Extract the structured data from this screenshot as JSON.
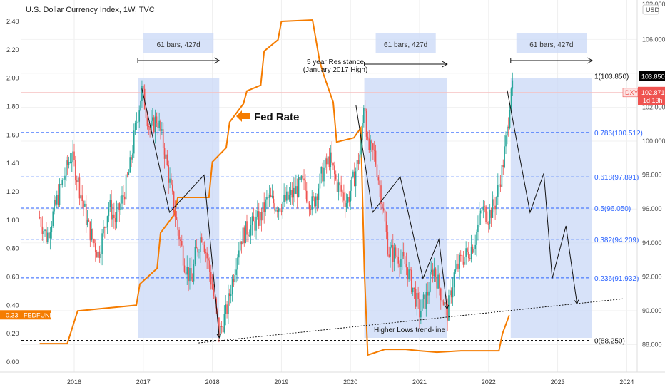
{
  "chart_data": {
    "type": "line",
    "title": "U.S. Dollar Currency Index, 1W, TVC",
    "x_ticks": [
      "2016",
      "2017",
      "2018",
      "2019",
      "2020",
      "2021",
      "2022",
      "2023",
      "2024"
    ],
    "left_axis": {
      "ticks": [
        "0.00",
        "0.20",
        "0.40",
        "0.60",
        "0.80",
        "1.00",
        "1.20",
        "1.40",
        "1.60",
        "1.80",
        "2.00",
        "2.20",
        "2.40"
      ],
      "range": [
        -0.05,
        2.55
      ]
    },
    "right_axis": {
      "unit": "USD",
      "ticks": [
        "88.000",
        "90.000",
        "92.000",
        "94.000",
        "96.000",
        "98.000",
        "100.000",
        "102.000",
        "104.000",
        "106.000"
      ],
      "top_label_partial": "10?.000",
      "range": [
        86.7,
        108.6
      ]
    },
    "fib_levels": [
      {
        "label": "1(103.850)",
        "value": 103.85
      },
      {
        "label": "0.786(100.512)",
        "value": 100.512
      },
      {
        "label": "0.618(97.891)",
        "value": 97.891
      },
      {
        "label": "0.5(96.050)",
        "value": 96.05
      },
      {
        "label": "0.382(94.209)",
        "value": 94.209
      },
      {
        "label": "0.236(91.932)",
        "value": 91.932
      },
      {
        "label": "0(88.250)",
        "value": 88.25
      }
    ],
    "boxes": [
      {
        "label": "61 bars, 427d",
        "start": 2016.92,
        "end": 2018.1
      },
      {
        "label": "61 bars, 427d",
        "start": 2020.2,
        "end": 2021.4
      },
      {
        "label": "61 bars, 427d",
        "start": 2022.32,
        "end": 2023.5
      }
    ],
    "resistance": {
      "value": 103.85,
      "label_line1": "5 year Resistance",
      "label_line2": "(January 2017 High)"
    },
    "trendline_label": "Higher Lows trend-line",
    "fed_label": "Fed Rate",
    "dxy_tag": {
      "name": "DXY",
      "price": "102.871",
      "countdown": "1d 13h"
    },
    "resistance_tag": "103.850",
    "fed_tag": {
      "value": "0.33",
      "name": "FEDFUNDS"
    },
    "fed_funds_series": {
      "name": "FEDFUNDS",
      "points": [
        [
          2015.5,
          0.13
        ],
        [
          2015.9,
          0.13
        ],
        [
          2016.05,
          0.36
        ],
        [
          2016.9,
          0.4
        ],
        [
          2016.95,
          0.55
        ],
        [
          2017.2,
          0.66
        ],
        [
          2017.25,
          0.91
        ],
        [
          2017.45,
          1.04
        ],
        [
          2017.5,
          1.16
        ],
        [
          2017.95,
          1.16
        ],
        [
          2018.0,
          1.41
        ],
        [
          2018.2,
          1.51
        ],
        [
          2018.25,
          1.69
        ],
        [
          2018.45,
          1.82
        ],
        [
          2018.5,
          1.91
        ],
        [
          2018.7,
          1.95
        ],
        [
          2018.75,
          2.19
        ],
        [
          2018.95,
          2.27
        ],
        [
          2019.0,
          2.4
        ],
        [
          2019.45,
          2.41
        ],
        [
          2019.55,
          2.13
        ],
        [
          2019.6,
          2.04
        ],
        [
          2019.75,
          1.83
        ],
        [
          2019.8,
          1.55
        ],
        [
          2020.05,
          1.58
        ],
        [
          2020.15,
          1.65
        ],
        [
          2020.2,
          0.65
        ],
        [
          2020.25,
          0.05
        ],
        [
          2020.5,
          0.09
        ],
        [
          2020.8,
          0.09
        ],
        [
          2021.0,
          0.08
        ],
        [
          2021.25,
          0.07
        ],
        [
          2021.6,
          0.08
        ],
        [
          2022.15,
          0.08
        ],
        [
          2022.2,
          0.2
        ],
        [
          2022.3,
          0.33
        ]
      ]
    },
    "dxy_series": {
      "name": "DXY",
      "points": [
        [
          2015.5,
          95.5
        ],
        [
          2015.6,
          94.3
        ],
        [
          2015.75,
          96.5
        ],
        [
          2015.95,
          99.2
        ],
        [
          2016.0,
          98.6
        ],
        [
          2016.2,
          95.0
        ],
        [
          2016.35,
          93.3
        ],
        [
          2016.4,
          94.2
        ],
        [
          2016.5,
          96.2
        ],
        [
          2016.6,
          95.3
        ],
        [
          2016.7,
          96.6
        ],
        [
          2016.8,
          98.3
        ],
        [
          2016.9,
          101.1
        ],
        [
          2016.98,
          103.0
        ],
        [
          2017.1,
          100.6
        ],
        [
          2017.2,
          101.4
        ],
        [
          2017.3,
          99.6
        ],
        [
          2017.4,
          97.1
        ],
        [
          2017.5,
          94.8
        ],
        [
          2017.6,
          92.8
        ],
        [
          2017.7,
          91.6
        ],
        [
          2017.75,
          93.2
        ],
        [
          2017.85,
          94.6
        ],
        [
          2017.95,
          92.6
        ],
        [
          2018.05,
          90.1
        ],
        [
          2018.1,
          88.6
        ],
        [
          2018.2,
          89.9
        ],
        [
          2018.3,
          92.0
        ],
        [
          2018.4,
          94.2
        ],
        [
          2018.5,
          94.8
        ],
        [
          2018.6,
          95.1
        ],
        [
          2018.7,
          95.5
        ],
        [
          2018.8,
          96.6
        ],
        [
          2018.95,
          96.2
        ],
        [
          2019.1,
          96.6
        ],
        [
          2019.3,
          97.5
        ],
        [
          2019.45,
          96.2
        ],
        [
          2019.6,
          98.2
        ],
        [
          2019.7,
          99.0
        ],
        [
          2019.8,
          97.5
        ],
        [
          2019.95,
          96.4
        ],
        [
          2020.05,
          97.8
        ],
        [
          2020.15,
          99.5
        ],
        [
          2020.2,
          102.8
        ],
        [
          2020.25,
          99.6
        ],
        [
          2020.35,
          99.2
        ],
        [
          2020.45,
          96.7
        ],
        [
          2020.55,
          93.5
        ],
        [
          2020.7,
          93.2
        ],
        [
          2020.8,
          92.7
        ],
        [
          2020.9,
          91.4
        ],
        [
          2021.0,
          89.9
        ],
        [
          2021.1,
          90.8
        ],
        [
          2021.2,
          92.6
        ],
        [
          2021.3,
          91.2
        ],
        [
          2021.4,
          89.8
        ],
        [
          2021.5,
          92.1
        ],
        [
          2021.6,
          93.0
        ],
        [
          2021.7,
          93.4
        ],
        [
          2021.8,
          94.1
        ],
        [
          2021.9,
          96.0
        ],
        [
          2022.0,
          95.6
        ],
        [
          2022.1,
          96.4
        ],
        [
          2022.2,
          98.4
        ],
        [
          2022.28,
          100.9
        ],
        [
          2022.33,
          103.6
        ],
        [
          2022.35,
          102.87
        ]
      ]
    },
    "projection_paths": [
      [
        [
          2016.98,
          103.1
        ],
        [
          2017.38,
          95.8
        ],
        [
          2017.88,
          98.0
        ],
        [
          2018.1,
          88.4
        ]
      ],
      [
        [
          2020.08,
          102.1
        ],
        [
          2020.32,
          95.8
        ],
        [
          2020.72,
          97.9
        ],
        [
          2021.05,
          91.9
        ],
        [
          2021.28,
          94.2
        ],
        [
          2021.4,
          90.1
        ]
      ],
      [
        [
          2022.27,
          103.0
        ],
        [
          2022.6,
          95.8
        ],
        [
          2022.8,
          98.1
        ],
        [
          2022.92,
          91.9
        ],
        [
          2023.12,
          95.0
        ],
        [
          2023.28,
          90.4
        ]
      ]
    ],
    "higher_lows_trendline": {
      "start": [
        2017.8,
        88.1
      ],
      "end": [
        2023.95,
        90.7
      ]
    },
    "colors": {
      "dxy_up": "#26a69a",
      "dxy_down": "#ef5350",
      "fed": "#f57c00",
      "fib": "#2962ff",
      "box": "#c9d8f7",
      "tag_red": "#ef5350",
      "tag_black": "#000000"
    }
  }
}
